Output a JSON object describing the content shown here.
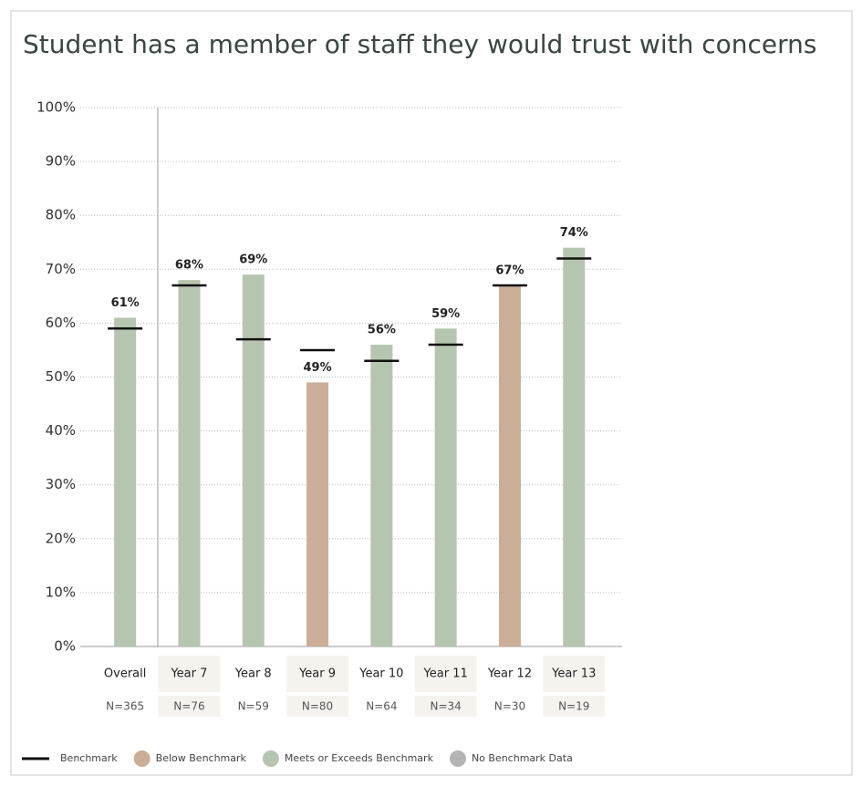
{
  "chart_data": {
    "type": "bar",
    "title": "Student has a member of staff they would trust with concerns",
    "categories": [
      "Overall",
      "Year 7",
      "Year 8",
      "Year 9",
      "Year 10",
      "Year 11",
      "Year 12",
      "Year 13"
    ],
    "sample_sizes": [
      "N=365",
      "N=76",
      "N=59",
      "N=80",
      "N=64",
      "N=34",
      "N=30",
      "N=19"
    ],
    "values": [
      61,
      68,
      69,
      49,
      56,
      59,
      67,
      74
    ],
    "value_labels": [
      "61%",
      "68%",
      "69%",
      "49%",
      "56%",
      "59%",
      "67%",
      "74%"
    ],
    "benchmarks": [
      59,
      67,
      57,
      55,
      53,
      56,
      67,
      72
    ],
    "colors": [
      "#b6c5af",
      "#b6c5af",
      "#b6c5af",
      "#cbae98",
      "#b6c5af",
      "#b6c5af",
      "#cbae98",
      "#b6c5af"
    ],
    "ylim": [
      0,
      100
    ],
    "yticks": [
      {
        "value": 0,
        "label": "0%"
      },
      {
        "value": 10,
        "label": "10%"
      },
      {
        "value": 20,
        "label": "20%"
      },
      {
        "value": 30,
        "label": "30%"
      },
      {
        "value": 40,
        "label": "40%"
      },
      {
        "value": 50,
        "label": "50%"
      },
      {
        "value": 60,
        "label": "60%"
      },
      {
        "value": 70,
        "label": "70%"
      },
      {
        "value": 80,
        "label": "80%"
      },
      {
        "value": 90,
        "label": "90%"
      },
      {
        "value": 100,
        "label": "100%"
      }
    ],
    "grid": true,
    "legend": [
      {
        "name": "Benchmark",
        "color": "#111111",
        "shape": "line"
      },
      {
        "name": "Below Benchmark",
        "color": "#cbae98",
        "shape": "circle"
      },
      {
        "name": "Meets or Exceeds Benchmark",
        "color": "#b6c5af",
        "shape": "circle"
      },
      {
        "name": "No Benchmark Data",
        "color": "#b4b4b4",
        "shape": "circle"
      }
    ]
  }
}
